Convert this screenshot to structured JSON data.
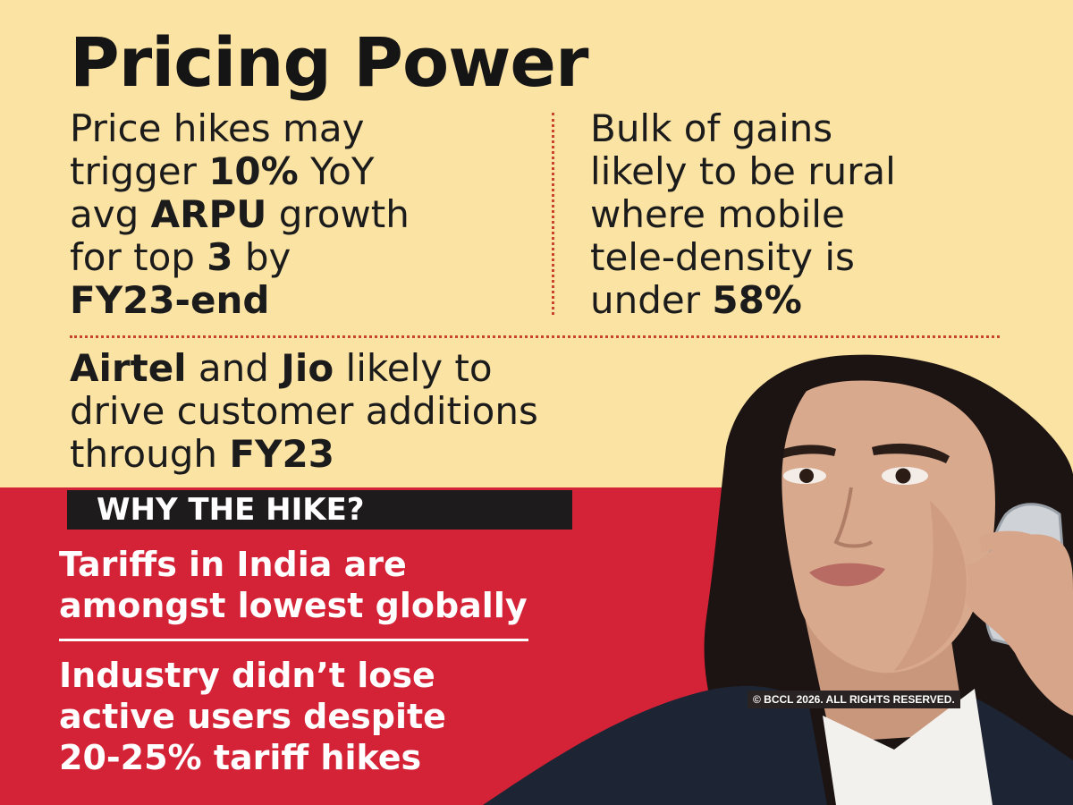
{
  "headline": "Pricing Power",
  "stat_left": {
    "line1": "Price hikes may",
    "line2_pre": "trigger ",
    "line2_bold": "10%",
    "line2_post": " YoY",
    "line3_pre": "avg ",
    "line3_bold": "ARPU",
    "line3_post": " growth",
    "line4_pre": "for top ",
    "line4_bold": "3",
    "line4_post": " by",
    "line5_bold": "FY23-end"
  },
  "stat_right": {
    "line1": "Bulk of gains",
    "line2": "likely to be rural",
    "line3": "where mobile",
    "line4": "tele-density is",
    "line5_pre": "under ",
    "line5_bold": "58%"
  },
  "stat_bottom": {
    "line1_bold_a": "Airtel",
    "line1_mid": " and ",
    "line1_bold_b": "Jio",
    "line1_post": " likely to",
    "line2": "drive customer additions",
    "line3_pre": "through ",
    "line3_bold": "FY23"
  },
  "why_title": "WHY THE HIKE?",
  "reasons": [
    {
      "line1": "Tariffs in India are",
      "line2": "amongst lowest globally"
    },
    {
      "line1": "Industry didn’t lose",
      "line2": "active users despite",
      "line3": "20-25% tariff hikes"
    }
  ],
  "copyright": "© BCCL 2026. ALL RIGHTS RESERVED.",
  "colors": {
    "background": "#fbe3a4",
    "red_band": "#d42237",
    "dark_box": "#1e1b1c",
    "divider": "#c8442f"
  },
  "photo": "woman-on-phone-photo"
}
